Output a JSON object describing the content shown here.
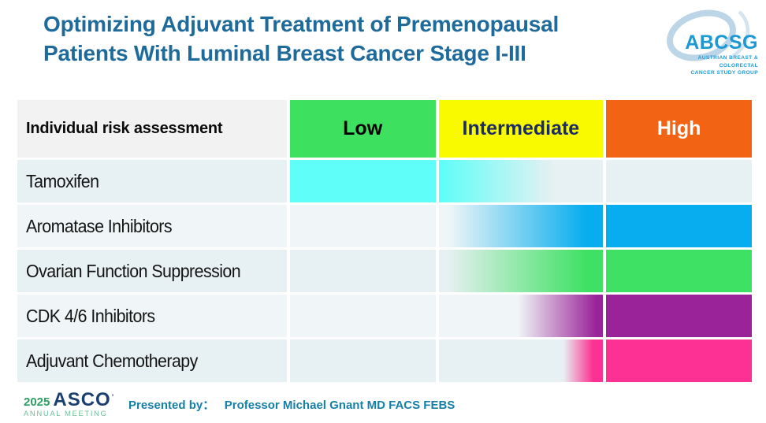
{
  "title": {
    "line1": "Optimizing Adjuvant Treatment of Premenopausal",
    "line2": "Patients With Luminal Breast Cancer Stage I-III"
  },
  "abcsg_logo": {
    "acronym": "ABCSG",
    "subtitle_line1": "AUSTRIAN BREAST & COLORECTAL",
    "subtitle_line2": "CANCER STUDY GROUP"
  },
  "table": {
    "header": {
      "label": "Individual risk assessment",
      "low": "Low",
      "intermediate": "Intermediate",
      "high": "High"
    },
    "rows": [
      {
        "label": "Tamoxifen",
        "color": "#5FFEF8",
        "low": "full",
        "intermediate": "fade-out",
        "high": "none"
      },
      {
        "label": "Aromatase Inhibitors",
        "color": "#07ADEE",
        "low": "none",
        "intermediate": "fade-in",
        "high": "full"
      },
      {
        "label": "Ovarian Function Suppression",
        "color": "#3EE163",
        "low": "none",
        "intermediate": "fade-in",
        "high": "full"
      },
      {
        "label": "CDK 4/6 Inhibitors",
        "color": "#9A2399",
        "low": "none",
        "intermediate": "fade-in-late",
        "high": "full"
      },
      {
        "label": "Adjuvant Chemotherapy",
        "color": "#FC3193",
        "low": "none",
        "intermediate": "fade-in-very-late",
        "high": "full"
      }
    ]
  },
  "footer": {
    "asco_year": "2025",
    "asco_name": "ASCO",
    "asco_subtitle": "ANNUAL MEETING",
    "presented_by_label": "Presented by：",
    "presenter": "Professor Michael Gnant MD FACS FEBS"
  },
  "colors": {
    "title": "#1D6A9B",
    "header_label_bg": "#F2F2F2",
    "low": "#3EE05F",
    "intermediate_bg": "#F9F900",
    "intermediate_text": "#1A2B66",
    "high": "#F26414",
    "accent_presented": "#157FA8",
    "abcsg_blue": "#1C99D5",
    "asco_green": "#2F9E62",
    "asco_navy": "#1A3E6F",
    "asco_light_green": "#6FBF9A"
  },
  "chart_data": {
    "type": "heatmap",
    "title": "Optimizing Adjuvant Treatment of Premenopausal Patients With Luminal Breast Cancer Stage I-III",
    "x_categories": [
      "Low",
      "Intermediate",
      "High"
    ],
    "y_categories": [
      "Tamoxifen",
      "Aromatase Inhibitors",
      "Ovarian Function Suppression",
      "CDK 4/6 Inhibitors",
      "Adjuvant Chemotherapy"
    ],
    "values": [
      [
        1,
        0.5,
        0
      ],
      [
        0,
        0.55,
        1
      ],
      [
        0,
        0.6,
        1
      ],
      [
        0,
        0.3,
        1
      ],
      [
        0,
        0.15,
        1
      ]
    ],
    "cell_colors": [
      "#5FFEF8",
      "#07ADEE",
      "#3EE163",
      "#9A2399",
      "#FC3193"
    ],
    "legend_position": "none",
    "grid": false
  }
}
